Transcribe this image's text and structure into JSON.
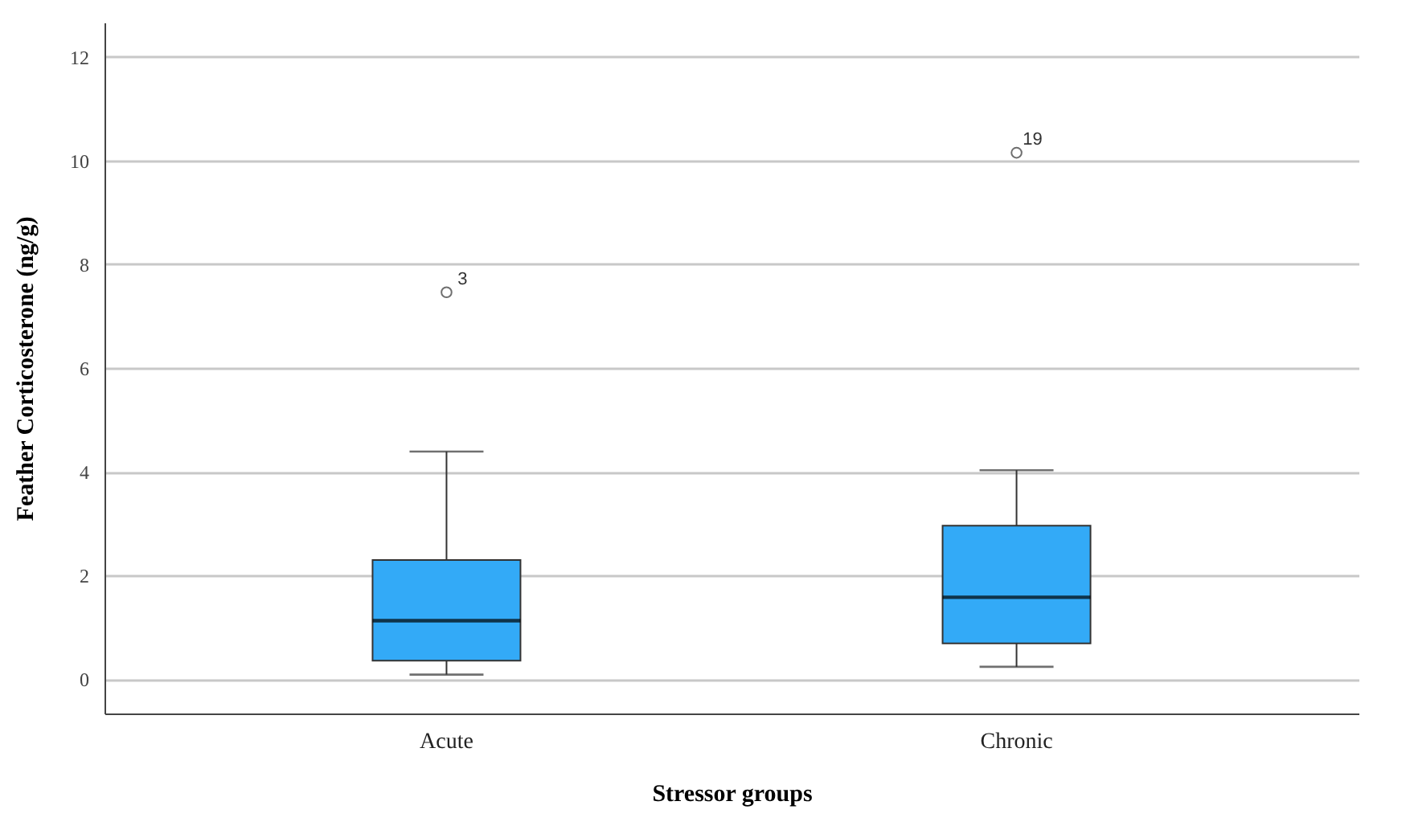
{
  "chart_data": {
    "type": "box",
    "xlabel": "Stressor groups",
    "ylabel": "Feather Corticosterone (ng/g)",
    "categories": [
      "Acute",
      "Chronic"
    ],
    "series": [
      {
        "color": "#33aaf7",
        "boxes": [
          {
            "low": 0.09,
            "q1": 0.36,
            "median": 1.13,
            "q3": 2.3,
            "high": 4.39,
            "outliers": [
              7.46
            ]
          },
          {
            "low": 0.24,
            "q1": 0.69,
            "median": 1.58,
            "q3": 2.96,
            "high": 4.03,
            "outliers": [
              10.15
            ]
          }
        ]
      }
    ],
    "annotations": [
      "3",
      "19"
    ],
    "ylim": [
      -0.66,
      12.66
    ],
    "yticks": [
      0,
      2,
      4,
      6,
      8,
      10,
      12
    ],
    "grid": "y",
    "marker": "circle"
  }
}
